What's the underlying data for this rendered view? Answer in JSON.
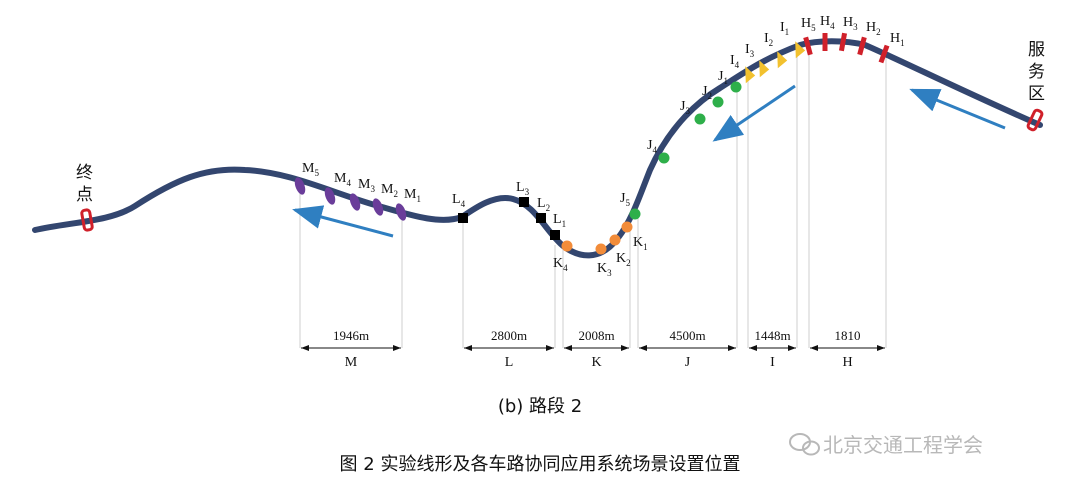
{
  "end_label": [
    "终",
    "点"
  ],
  "service_label": [
    "服",
    "务",
    "区"
  ],
  "route_color": "#33466f",
  "flow_arrow_color": "#2f7fc1",
  "groups": {
    "M": {
      "color": "#6a3d9a",
      "points": [
        {
          "id": "M5",
          "letter": "M",
          "sub": "5"
        },
        {
          "id": "M4",
          "letter": "M",
          "sub": "4"
        },
        {
          "id": "M3",
          "letter": "M",
          "sub": "3"
        },
        {
          "id": "M2",
          "letter": "M",
          "sub": "2"
        },
        {
          "id": "M1",
          "letter": "M",
          "sub": "1"
        }
      ]
    },
    "L": {
      "color": "#000000",
      "points": [
        {
          "id": "L4",
          "letter": "L",
          "sub": "4"
        },
        {
          "id": "L3",
          "letter": "L",
          "sub": "3"
        },
        {
          "id": "L2",
          "letter": "L",
          "sub": "2"
        },
        {
          "id": "L1",
          "letter": "L",
          "sub": "1"
        }
      ]
    },
    "K": {
      "color": "#f28c3a",
      "points": [
        {
          "id": "K4",
          "letter": "K",
          "sub": "4"
        },
        {
          "id": "K3",
          "letter": "K",
          "sub": "3"
        },
        {
          "id": "K2",
          "letter": "K",
          "sub": "2"
        },
        {
          "id": "K1",
          "letter": "K",
          "sub": "1"
        }
      ]
    },
    "J": {
      "color": "#2eaf4a",
      "points": [
        {
          "id": "J5",
          "letter": "J",
          "sub": "5"
        },
        {
          "id": "J4",
          "letter": "J",
          "sub": "4"
        },
        {
          "id": "J3",
          "letter": "J",
          "sub": "3"
        },
        {
          "id": "J2",
          "letter": "J",
          "sub": "2"
        },
        {
          "id": "J1",
          "letter": "J",
          "sub": "1"
        }
      ]
    },
    "I": {
      "color": "#f2c12e",
      "points": [
        {
          "id": "I4",
          "letter": "I",
          "sub": "4"
        },
        {
          "id": "I3",
          "letter": "I",
          "sub": "3"
        },
        {
          "id": "I2",
          "letter": "I",
          "sub": "2"
        },
        {
          "id": "I1",
          "letter": "I",
          "sub": "1"
        }
      ]
    },
    "H": {
      "color": "#d0202a",
      "points": [
        {
          "id": "H5",
          "letter": "H",
          "sub": "5"
        },
        {
          "id": "H4",
          "letter": "H",
          "sub": "4"
        },
        {
          "id": "H3",
          "letter": "H",
          "sub": "3"
        },
        {
          "id": "H2",
          "letter": "H",
          "sub": "2"
        },
        {
          "id": "H1",
          "letter": "H",
          "sub": "1"
        }
      ]
    }
  },
  "segments": [
    {
      "id": "M",
      "distance": "1946m",
      "name": "M"
    },
    {
      "id": "L",
      "distance": "2800m",
      "name": "L"
    },
    {
      "id": "K",
      "distance": "2008m",
      "name": "K"
    },
    {
      "id": "J",
      "distance": "4500m",
      "name": "J"
    },
    {
      "id": "I",
      "distance": "1448m",
      "name": "I"
    },
    {
      "id": "H",
      "distance": "1810",
      "name": "H"
    }
  ],
  "subcaption": "(b)  路段 2",
  "figure_caption": "图 2  实验线形及各车路协同应用系统场景设置位置",
  "watermark": "北京交通工程学会"
}
